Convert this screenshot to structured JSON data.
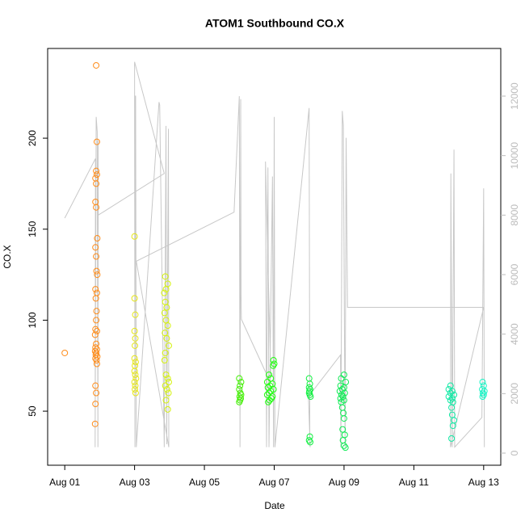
{
  "chart_data": {
    "type": "scatter",
    "title": "ATOM1 Southbound CO.X",
    "x_label": "Date",
    "y_label": "CO.X",
    "xlim": [
      0.51,
      13.49
    ],
    "xticks": [
      {
        "value": 1,
        "label": "Aug 01"
      },
      {
        "value": 3,
        "label": "Aug 03"
      },
      {
        "value": 5,
        "label": "Aug 05"
      },
      {
        "value": 7,
        "label": "Aug 07"
      },
      {
        "value": 9,
        "label": "Aug 09"
      },
      {
        "value": 11,
        "label": "Aug 11"
      },
      {
        "value": 13,
        "label": "Aug 13"
      }
    ],
    "ylim": [
      20.3,
      249.3
    ],
    "yticks": [
      50,
      100,
      150,
      200
    ],
    "y2lim": [
      -407,
      13602
    ],
    "y2ticks": [
      0,
      2000,
      4000,
      6000,
      8000,
      10000,
      12000
    ],
    "series": [
      {
        "color": "#ff8c1a",
        "x": [
          1.0,
          1.9,
          1.92,
          1.9,
          1.92,
          1.88,
          1.9,
          1.88,
          1.9,
          1.93,
          1.88,
          1.9,
          1.91,
          1.93,
          1.88,
          1.92,
          1.89,
          1.91,
          1.9,
          1.88,
          1.92,
          1.87,
          1.9,
          1.88,
          1.92,
          1.87,
          1.9,
          1.89,
          1.93,
          1.88,
          1.91,
          1.92,
          1.88,
          1.9,
          1.88,
          1.87
        ],
        "values": [
          82,
          240,
          198,
          182,
          180,
          178,
          175,
          165,
          162,
          145,
          140,
          135,
          127,
          125,
          117,
          115,
          112,
          105,
          100,
          95,
          94,
          92,
          87,
          85,
          84,
          83,
          82,
          81,
          80,
          79,
          78,
          76,
          64,
          60,
          54,
          43
        ]
      },
      {
        "color": "#e6e619",
        "x": [
          3.0,
          3.0,
          3.02,
          3.0,
          3.02,
          3.01,
          3.0,
          3.03,
          3.01,
          3.0,
          3.02,
          3.04,
          3.0,
          3.02,
          3.01,
          3.03
        ],
        "values": [
          146,
          112,
          103,
          94,
          90,
          86,
          79,
          77,
          75,
          72,
          70,
          68,
          66,
          64,
          62,
          60
        ]
      },
      {
        "color": "#d5f20d",
        "x": [
          3.88,
          3.95,
          3.9,
          3.85,
          3.88,
          3.92,
          3.86,
          3.9,
          3.95,
          3.87,
          3.92,
          3.98,
          3.88,
          3.86,
          3.9,
          3.95,
          3.98,
          3.88,
          3.93,
          3.97,
          3.9,
          3.95
        ],
        "values": [
          124,
          120,
          117,
          115,
          110,
          107,
          104,
          100,
          97,
          93,
          90,
          86,
          82,
          78,
          70,
          68,
          66,
          64,
          62,
          60,
          56,
          51
        ]
      },
      {
        "color": "#40f000",
        "x": [
          6.0,
          6.05,
          6.02,
          6.0,
          6.03,
          6.05,
          6.01,
          6.04,
          6.02,
          6.0
        ],
        "values": [
          68,
          66,
          64,
          62,
          60,
          59,
          58,
          57,
          56,
          55
        ]
      },
      {
        "color": "#20ff10",
        "x": [
          6.98,
          7.0,
          6.97,
          6.85,
          6.9,
          6.8,
          6.95,
          6.88,
          6.82,
          6.98,
          6.9,
          6.85,
          6.8,
          6.95,
          6.92,
          6.87,
          6.83
        ],
        "values": [
          78,
          76,
          75,
          70,
          68,
          66,
          65,
          64,
          63,
          62,
          61,
          60,
          59,
          58,
          57,
          56,
          55
        ]
      },
      {
        "color": "#10f040",
        "x": [
          8.0,
          8.02,
          8.0,
          8.03,
          8.01,
          8.0,
          8.02,
          8.04,
          8.02,
          8.0,
          8.03
        ],
        "values": [
          68,
          65,
          63,
          62,
          61,
          60,
          59,
          58,
          36,
          34,
          33
        ]
      },
      {
        "color": "#10ea55",
        "x": [
          9.0,
          8.92,
          9.05,
          8.9,
          9.0,
          8.95,
          8.88,
          9.02,
          8.93,
          8.97,
          8.9,
          9.0,
          8.92,
          8.95,
          8.98,
          9.0,
          8.96,
          9.02,
          8.97,
          9.0,
          9.04
        ],
        "values": [
          70,
          68,
          66,
          64,
          63,
          62,
          61,
          60,
          59,
          58,
          57,
          56,
          55,
          52,
          49,
          46,
          40,
          37,
          34,
          31,
          30
        ]
      },
      {
        "color": "#10eaa5",
        "x": [
          12.05,
          12.0,
          12.1,
          12.05,
          12.15,
          12.0,
          12.1,
          12.05,
          12.12,
          12.08,
          12.1,
          12.15,
          12.12,
          12.08
        ],
        "values": [
          64,
          62,
          61,
          60,
          59,
          58,
          57,
          56,
          55,
          52,
          48,
          45,
          42,
          35
        ]
      },
      {
        "color": "#15f5c5",
        "x": [
          12.97,
          13.0,
          12.96,
          13.02,
          12.98,
          13.0,
          12.97
        ],
        "values": [
          66,
          64,
          62,
          61,
          60,
          59,
          58
        ]
      },
      {
        "type": "line",
        "axis": "y2",
        "color": "#c8c8c8",
        "x": [
          1.0,
          1.88,
          1.87,
          1.9,
          1.93,
          1.95,
          1.96,
          1.96,
          3.85,
          3.0,
          3.01,
          3.02,
          3.03,
          3.05,
          3.7,
          3.72,
          3.85,
          3.9,
          3.92,
          3.97,
          3.98,
          3.05,
          5.85,
          6.0,
          6.02,
          6.04,
          6.05,
          6.06,
          6.88,
          6.9,
          6.75,
          6.78,
          6.82,
          6.85,
          6.95,
          6.98,
          7.0,
          7.02,
          8.0,
          8.02,
          8.03,
          7.98,
          8.9,
          8.91,
          8.95,
          8.98,
          9.03,
          9.06,
          9.1,
          13.0,
          12.05,
          12.06,
          12.1,
          12.15,
          12.17,
          12.95,
          13.0,
          13.02
        ],
        "values": [
          7900,
          9900,
          200,
          11300,
          10800,
          200,
          10500,
          8000,
          9400,
          13150,
          200,
          12000,
          12000,
          200,
          11800,
          11700,
          200,
          11000,
          300,
          10900,
          200,
          6450,
          8100,
          12000,
          200,
          11900,
          5300,
          4500,
          2400,
          2700,
          9800,
          200,
          9600,
          200,
          9300,
          200,
          11300,
          200,
          11600,
          300,
          200,
          1900,
          3300,
          200,
          11500,
          11000,
          200,
          10600,
          4900,
          4900,
          200,
          9400,
          200,
          10200,
          200,
          1200,
          8900,
          200
        ]
      }
    ]
  }
}
